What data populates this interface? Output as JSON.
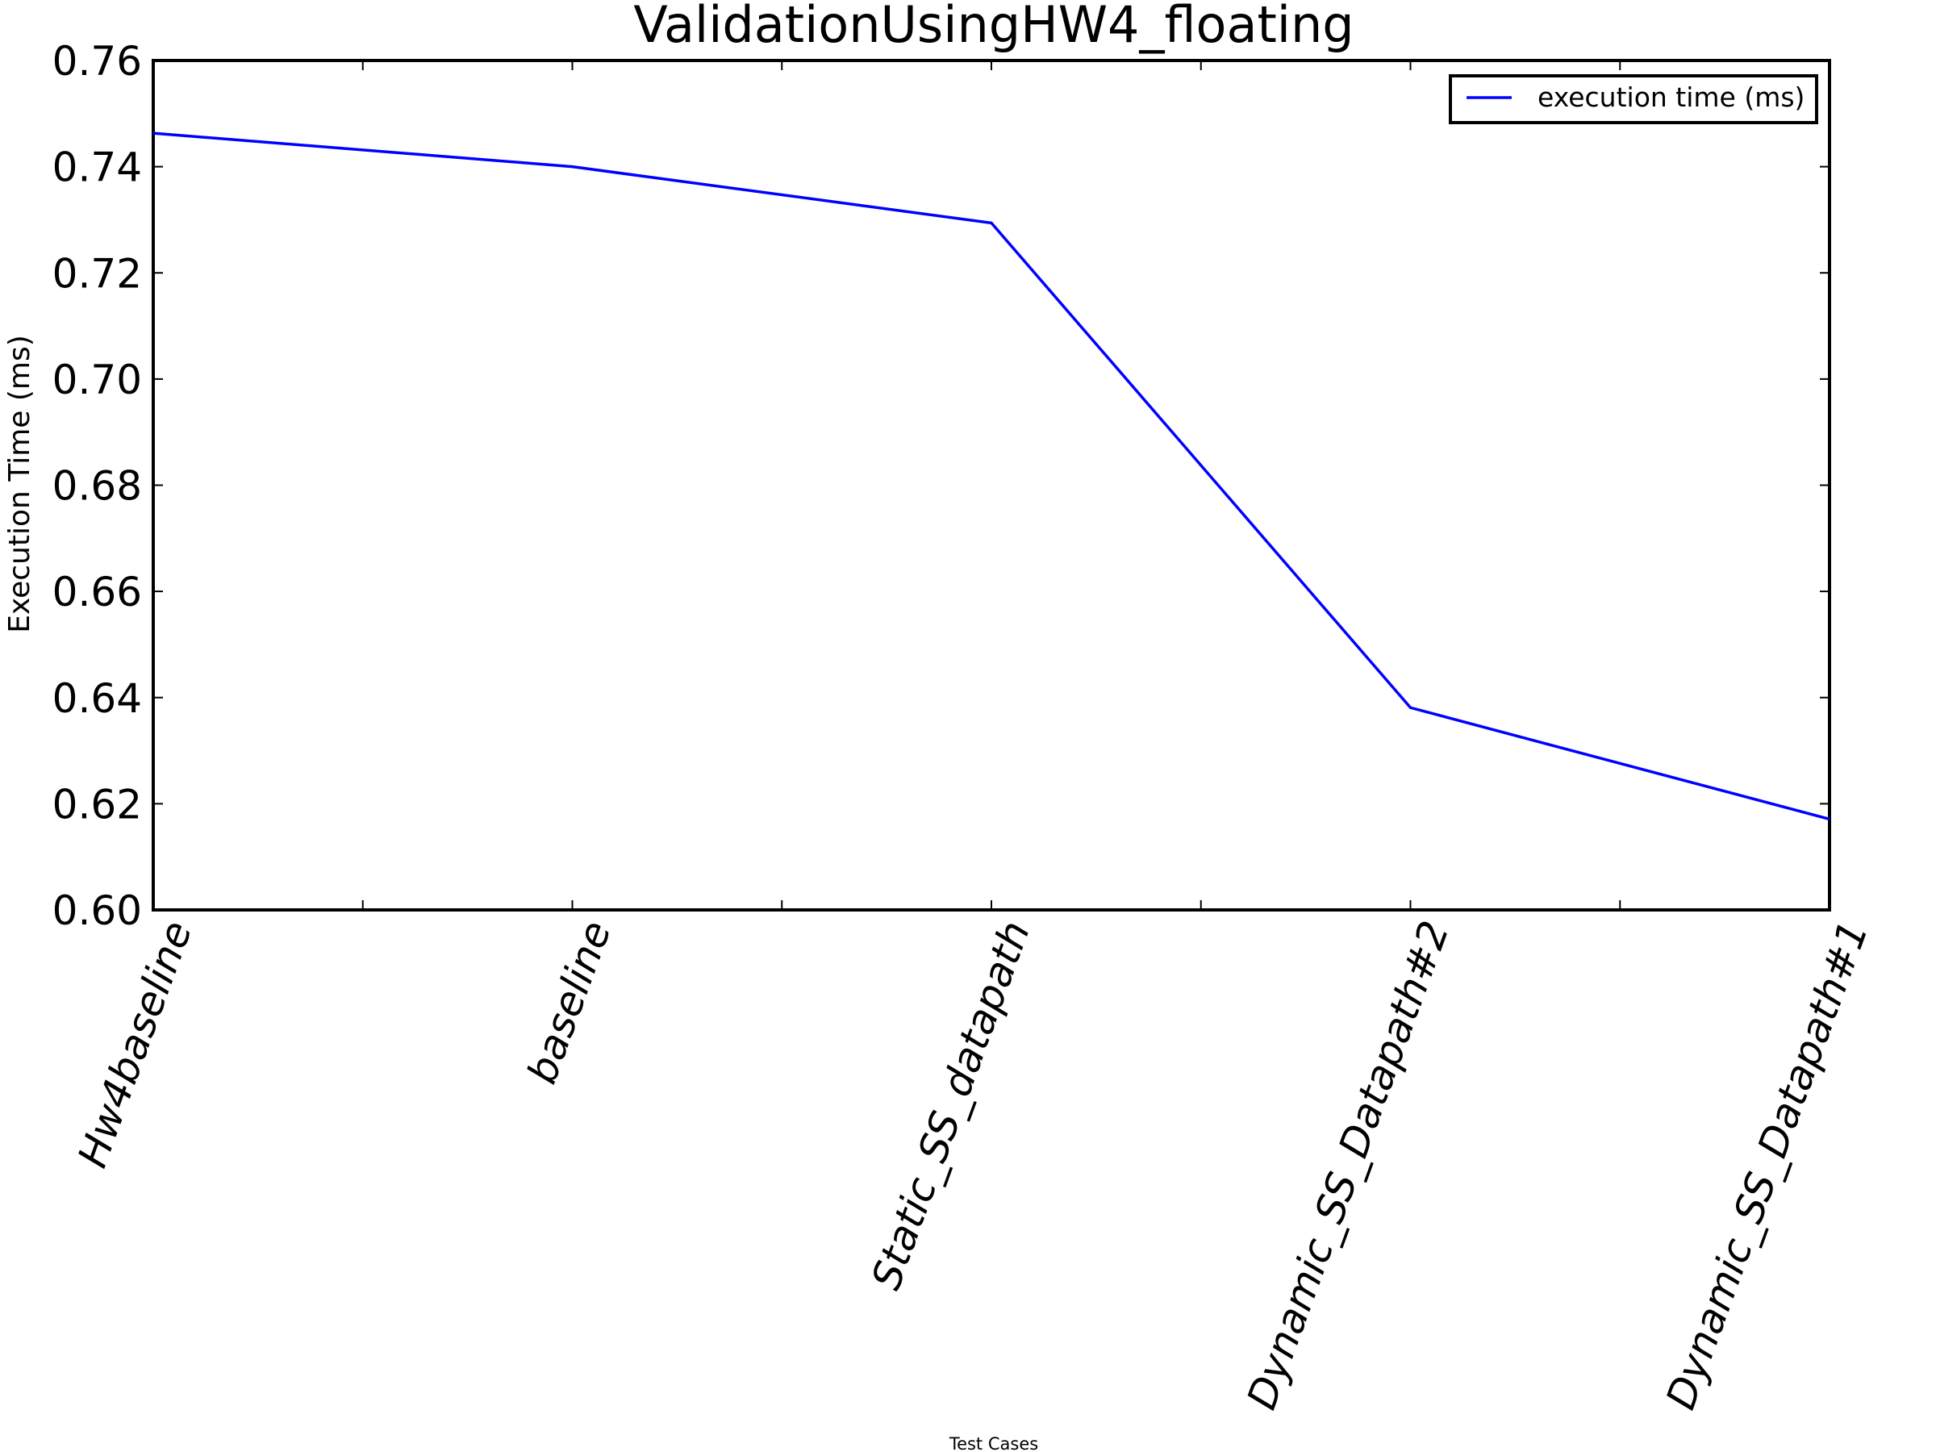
{
  "chart_data": {
    "type": "line",
    "title": "ValidationUsingHW4_floating",
    "xlabel": "Test Cases",
    "ylabel": "Execution Time (ms)",
    "categories": [
      "Hw4baseline",
      "baseline",
      "Static_SS_datapath",
      "Dynamic_SS_Datapath#2",
      "Dynamic_SS_Datapath#1"
    ],
    "series": [
      {
        "name": "execution time (ms)",
        "color": "#0000ff",
        "values": [
          0.7463,
          0.74,
          0.7294,
          0.6381,
          0.6171
        ]
      }
    ],
    "ylim": [
      0.6,
      0.76
    ],
    "yticks": [
      "0.60",
      "0.62",
      "0.64",
      "0.66",
      "0.68",
      "0.70",
      "0.72",
      "0.74",
      "0.76"
    ],
    "grid": false,
    "legend_position": "top-right"
  }
}
